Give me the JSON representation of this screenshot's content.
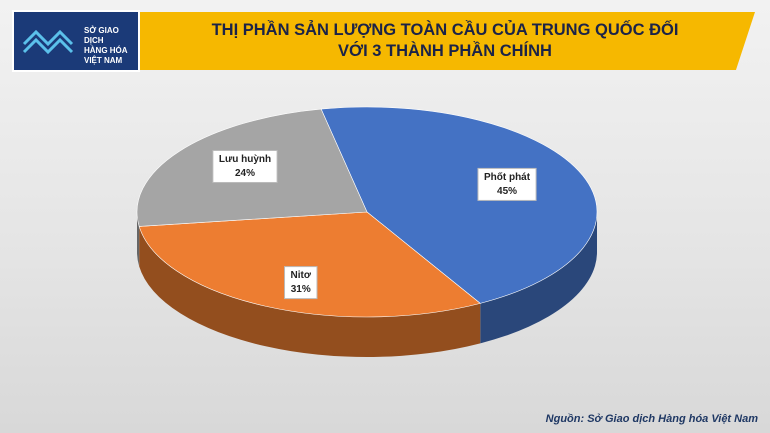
{
  "logo_lines": [
    "SỞ GIAO DỊCH",
    "HÀNG HÓA",
    "VIỆT NAM"
  ],
  "source": "Nguồn: Sở Giao dịch Hàng hóa Việt Nam",
  "chart_data": {
    "type": "pie3d",
    "title": "THỊ PHẦN SẢN LƯỢNG TOÀN CẦU CỦA TRUNG QUỐC ĐỐI VỚI 3 THÀNH PHẦN CHÍNH",
    "categories": [
      "Phốt phát",
      "Nitơ",
      "Lưu huỳnh"
    ],
    "values": [
      45,
      31,
      24
    ],
    "value_labels": [
      "45%",
      "31%",
      "24%"
    ],
    "colors": [
      "#4472c4",
      "#ed7d31",
      "#a5a5a5"
    ]
  }
}
